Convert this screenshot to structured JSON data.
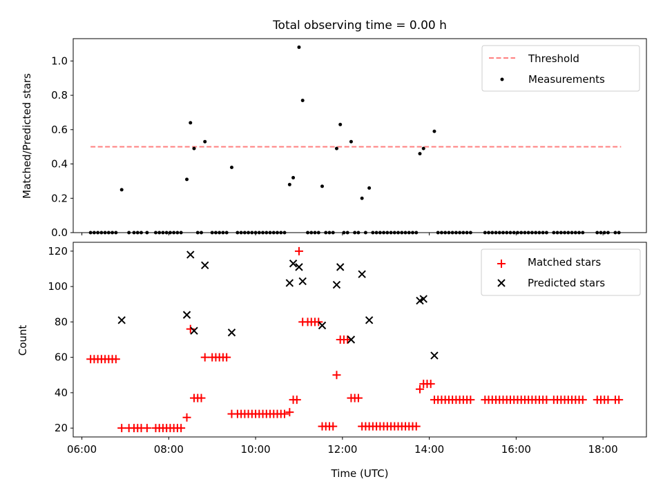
{
  "chart_data": [
    {
      "type": "scatter",
      "title": "Total observing time = 0.00 h",
      "xlabel": "",
      "ylabel": "Matched/Predicted stars",
      "ylim": [
        0,
        1.13
      ],
      "yticks": [
        "0.0",
        "0.2",
        "0.4",
        "0.6",
        "0.8",
        "1.0"
      ],
      "grid": false,
      "legend_position": "top-right",
      "threshold": {
        "name": "Threshold",
        "value": 0.5,
        "x_start": "06:12",
        "x_end": "18:25",
        "color": "#ff7f7f"
      },
      "series": [
        {
          "name": "Measurements",
          "color": "#000000",
          "points": [
            [
              "06:55",
              0.25
            ],
            [
              "08:25",
              0.31
            ],
            [
              "08:30",
              0.64
            ],
            [
              "08:35",
              0.49
            ],
            [
              "08:50",
              0.53
            ],
            [
              "09:27",
              0.38
            ],
            [
              "10:47",
              0.28
            ],
            [
              "10:52",
              0.32
            ],
            [
              "11:00",
              1.08
            ],
            [
              "11:05",
              0.77
            ],
            [
              "11:32",
              0.27
            ],
            [
              "11:52",
              0.49
            ],
            [
              "11:57",
              0.63
            ],
            [
              "12:12",
              0.53
            ],
            [
              "12:27",
              0.2
            ],
            [
              "12:37",
              0.26
            ],
            [
              "13:47",
              0.46
            ],
            [
              "13:52",
              0.49
            ],
            [
              "14:07",
              0.59
            ]
          ],
          "zero_times": [
            "06:12",
            "06:17",
            "06:22",
            "06:27",
            "06:32",
            "06:37",
            "06:42",
            "06:47",
            "07:05",
            "07:12",
            "07:17",
            "07:22",
            "07:30",
            "07:42",
            "07:47",
            "07:52",
            "07:57",
            "08:02",
            "08:07",
            "08:12",
            "08:17",
            "08:40",
            "08:45",
            "09:00",
            "09:05",
            "09:10",
            "09:15",
            "09:20",
            "09:35",
            "09:40",
            "09:45",
            "09:50",
            "09:55",
            "10:00",
            "10:05",
            "10:10",
            "10:15",
            "10:20",
            "10:25",
            "10:30",
            "10:35",
            "10:40",
            "11:12",
            "11:17",
            "11:22",
            "11:27",
            "11:37",
            "11:42",
            "11:47",
            "12:02",
            "12:07",
            "12:17",
            "12:22",
            "12:32",
            "12:42",
            "12:47",
            "12:52",
            "12:57",
            "13:02",
            "13:07",
            "13:12",
            "13:17",
            "13:22",
            "13:27",
            "13:32",
            "13:37",
            "13:42",
            "14:12",
            "14:17",
            "14:22",
            "14:27",
            "14:32",
            "14:37",
            "14:42",
            "14:47",
            "14:52",
            "14:57",
            "15:17",
            "15:22",
            "15:27",
            "15:32",
            "15:37",
            "15:42",
            "15:47",
            "15:52",
            "15:57",
            "16:02",
            "16:07",
            "16:12",
            "16:17",
            "16:22",
            "16:27",
            "16:32",
            "16:37",
            "16:42",
            "16:52",
            "16:57",
            "17:02",
            "17:07",
            "17:12",
            "17:17",
            "17:22",
            "17:27",
            "17:32",
            "17:52",
            "17:57",
            "18:02",
            "18:07",
            "18:17",
            "18:22"
          ]
        }
      ]
    },
    {
      "type": "scatter",
      "title": "",
      "xlabel": "Time (UTC)",
      "ylabel": "Count",
      "xlim": [
        "05:48",
        "19:00"
      ],
      "xticks": [
        "06:00",
        "08:00",
        "10:00",
        "12:00",
        "14:00",
        "16:00",
        "18:00"
      ],
      "ylim": [
        15,
        125
      ],
      "yticks": [
        "20",
        "40",
        "60",
        "80",
        "100",
        "120"
      ],
      "grid": false,
      "legend_position": "top-right",
      "series": [
        {
          "name": "Matched stars",
          "color": "#ff0000",
          "groups": [
            {
              "value": 59,
              "times": [
                "06:12",
                "06:17",
                "06:22",
                "06:27",
                "06:32",
                "06:37",
                "06:42",
                "06:47"
              ]
            },
            {
              "value": 20,
              "times": [
                "06:55",
                "07:05",
                "07:12",
                "07:17",
                "07:22",
                "07:30",
                "07:42",
                "07:47",
                "07:52",
                "07:57",
                "08:02",
                "08:07",
                "08:12",
                "08:17"
              ]
            },
            {
              "value": 26,
              "times": [
                "08:25"
              ]
            },
            {
              "value": 76,
              "times": [
                "08:30"
              ]
            },
            {
              "value": 37,
              "times": [
                "08:35",
                "08:40",
                "08:45"
              ]
            },
            {
              "value": 60,
              "times": [
                "08:50",
                "09:00",
                "09:05",
                "09:10",
                "09:15",
                "09:20"
              ]
            },
            {
              "value": 28,
              "times": [
                "09:27",
                "09:35",
                "09:40",
                "09:45",
                "09:50",
                "09:55",
                "10:00",
                "10:05",
                "10:10",
                "10:15",
                "10:20",
                "10:25",
                "10:30",
                "10:35",
                "10:40"
              ]
            },
            {
              "value": 29,
              "times": [
                "10:47"
              ]
            },
            {
              "value": 36,
              "times": [
                "10:52",
                "10:57"
              ]
            },
            {
              "value": 120,
              "times": [
                "11:00"
              ]
            },
            {
              "value": 80,
              "times": [
                "11:05",
                "11:12",
                "11:17",
                "11:22",
                "11:27"
              ]
            },
            {
              "value": 21,
              "times": [
                "11:32",
                "11:37",
                "11:42",
                "11:47"
              ]
            },
            {
              "value": 50,
              "times": [
                "11:52"
              ]
            },
            {
              "value": 70,
              "times": [
                "11:57",
                "12:02",
                "12:07"
              ]
            },
            {
              "value": 37,
              "times": [
                "12:12",
                "12:17",
                "12:22"
              ]
            },
            {
              "value": 21,
              "times": [
                "12:27",
                "12:32",
                "12:37",
                "12:42",
                "12:47",
                "12:52",
                "12:57",
                "13:02",
                "13:07",
                "13:12",
                "13:17",
                "13:22",
                "13:27",
                "13:32",
                "13:37",
                "13:42"
              ]
            },
            {
              "value": 42,
              "times": [
                "13:47"
              ]
            },
            {
              "value": 45,
              "times": [
                "13:52",
                "13:57",
                "14:02"
              ]
            },
            {
              "value": 36,
              "times": [
                "14:07",
                "14:12",
                "14:17",
                "14:22",
                "14:27",
                "14:32",
                "14:37",
                "14:42",
                "14:47",
                "14:52",
                "14:57",
                "15:17",
                "15:22",
                "15:27",
                "15:32",
                "15:37",
                "15:42",
                "15:47",
                "15:52",
                "15:57",
                "16:02",
                "16:07",
                "16:12",
                "16:17",
                "16:22",
                "16:27",
                "16:32",
                "16:37",
                "16:42",
                "16:52",
                "16:57",
                "17:02",
                "17:07",
                "17:12",
                "17:17",
                "17:22",
                "17:27",
                "17:32",
                "17:52",
                "17:57",
                "18:02",
                "18:07",
                "18:17",
                "18:22"
              ]
            }
          ]
        },
        {
          "name": "Predicted stars",
          "color": "#000000",
          "points": [
            [
              "06:55",
              81
            ],
            [
              "08:25",
              84
            ],
            [
              "08:30",
              118
            ],
            [
              "08:35",
              75
            ],
            [
              "08:50",
              112
            ],
            [
              "09:27",
              74
            ],
            [
              "10:47",
              102
            ],
            [
              "10:52",
              113
            ],
            [
              "11:00",
              111
            ],
            [
              "11:05",
              103
            ],
            [
              "11:32",
              78
            ],
            [
              "11:52",
              101
            ],
            [
              "11:57",
              111
            ],
            [
              "12:12",
              70
            ],
            [
              "12:27",
              107
            ],
            [
              "12:37",
              81
            ],
            [
              "13:47",
              92
            ],
            [
              "13:52",
              93
            ],
            [
              "14:07",
              61
            ]
          ]
        }
      ]
    }
  ]
}
